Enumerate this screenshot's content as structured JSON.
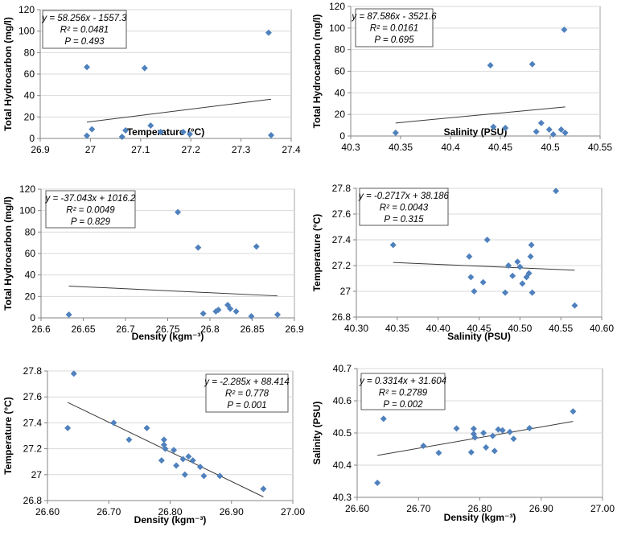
{
  "chart_data": [
    {
      "type": "scatter",
      "title": "",
      "xlabel": "Temperature (°C)",
      "ylabel": "Total Hydrocarbon (mg/l)",
      "xlim": [
        26.9,
        27.4
      ],
      "ylim": [
        0,
        120
      ],
      "xticks": [
        "26.9",
        "27",
        "27.1",
        "27.2",
        "27.3",
        "27.4"
      ],
      "yticks": [
        "0",
        "20",
        "40",
        "60",
        "80",
        "100",
        "120"
      ],
      "grid": true,
      "annotation": [
        "y = 58.256x - 1557.3",
        "R² = 0.0481",
        "P = 0.493"
      ],
      "annotation_position": "top-left",
      "trendline": {
        "slope": 58.256,
        "intercept": -1557.3,
        "x_range": [
          26.993,
          27.36
        ]
      },
      "points": [
        [
          26.993,
          66.5
        ],
        [
          26.993,
          2.5
        ],
        [
          27.003,
          8.5
        ],
        [
          27.063,
          1.5
        ],
        [
          27.07,
          7.5
        ],
        [
          27.108,
          65.5
        ],
        [
          27.12,
          12
        ],
        [
          27.14,
          6
        ],
        [
          27.185,
          6
        ],
        [
          27.198,
          4
        ],
        [
          27.355,
          98.5
        ],
        [
          27.36,
          3
        ]
      ]
    },
    {
      "type": "scatter",
      "title": "",
      "xlabel": "Salinity (PSU)",
      "ylabel": "Total Hydrocarbon (mg/l)",
      "xlim": [
        40.3,
        40.55
      ],
      "ylim": [
        0,
        120
      ],
      "xticks": [
        "40.3",
        "40.35",
        "40.4",
        "40.45",
        "40.5",
        "40.55"
      ],
      "yticks": [
        "0",
        "20",
        "40",
        "60",
        "80",
        "100",
        "120"
      ],
      "grid": true,
      "annotation": [
        "y = 87.586x - 3521.6",
        "R² = 0.0161",
        "P =  0.695"
      ],
      "annotation_position": "top-left",
      "trendline": {
        "slope": 87.586,
        "intercept": -3521.6,
        "x_range": [
          40.345,
          40.515
        ]
      },
      "points": [
        [
          40.345,
          3
        ],
        [
          40.44,
          65.5
        ],
        [
          40.443,
          8.5
        ],
        [
          40.455,
          7.5
        ],
        [
          40.482,
          66.5
        ],
        [
          40.486,
          4
        ],
        [
          40.491,
          12
        ],
        [
          40.499,
          6
        ],
        [
          40.503,
          1.5
        ],
        [
          40.511,
          6
        ],
        [
          40.514,
          98.5
        ],
        [
          40.515,
          3
        ]
      ]
    },
    {
      "type": "scatter",
      "title": "",
      "xlabel": "Density (kgm⁻³)",
      "ylabel": "Total Hydrocarbon (mg/l)",
      "xlim": [
        26.6,
        26.9
      ],
      "ylim": [
        0,
        120
      ],
      "xticks": [
        "26.6",
        "26.65",
        "26.7",
        "26.75",
        "26.8",
        "26.85",
        "26.9"
      ],
      "yticks": [
        "0",
        "20",
        "40",
        "60",
        "80",
        "100",
        "120"
      ],
      "grid": true,
      "annotation": [
        "y = -37.043x + 1016.2",
        "R² = 0.0049",
        "P = 0.829"
      ],
      "annotation_position": "top-left",
      "trendline": {
        "slope": -37.043,
        "intercept": 1016.2,
        "x_range": [
          26.633,
          26.88
        ]
      },
      "points": [
        [
          26.633,
          3
        ],
        [
          26.762,
          98.5
        ],
        [
          26.786,
          65.5
        ],
        [
          26.792,
          4
        ],
        [
          26.807,
          6
        ],
        [
          26.81,
          7.5
        ],
        [
          26.821,
          12
        ],
        [
          26.824,
          8.5
        ],
        [
          26.831,
          6
        ],
        [
          26.849,
          1.5
        ],
        [
          26.855,
          66.5
        ],
        [
          26.88,
          3
        ]
      ]
    },
    {
      "type": "scatter",
      "title": "",
      "xlabel": "Salinity (PSU)",
      "ylabel": "Temperature (°C)",
      "xlim": [
        40.3,
        40.6
      ],
      "ylim": [
        26.8,
        27.8
      ],
      "xticks": [
        "40.30",
        "40.35",
        "40.40",
        "40.45",
        "40.50",
        "40.55",
        "40.60"
      ],
      "yticks": [
        "27",
        "27.2",
        "27.4",
        "27.6",
        "27.8"
      ],
      "ytick_values": [
        27.0,
        27.2,
        27.4,
        27.6,
        27.8
      ],
      "ylim_label_bottom": "26.8",
      "grid": true,
      "annotation": [
        "y = -0.2717x + 38.186",
        "R² = 0.0043",
        "P = 0.315"
      ],
      "annotation_position": "top-left",
      "trendline": {
        "slope": -0.2717,
        "intercept": 38.186,
        "x_range": [
          40.345,
          40.567
        ]
      },
      "points": [
        [
          40.345,
          27.36
        ],
        [
          40.438,
          27.27
        ],
        [
          40.44,
          27.11
        ],
        [
          40.444,
          27.0
        ],
        [
          40.455,
          27.07
        ],
        [
          40.46,
          27.4
        ],
        [
          40.482,
          26.99
        ],
        [
          40.486,
          27.2
        ],
        [
          40.491,
          27.12
        ],
        [
          40.497,
          27.23
        ],
        [
          40.5,
          27.19
        ],
        [
          40.503,
          27.06
        ],
        [
          40.508,
          27.11
        ],
        [
          40.511,
          27.14
        ],
        [
          40.513,
          27.27
        ],
        [
          40.514,
          27.36
        ],
        [
          40.515,
          26.99
        ],
        [
          40.544,
          27.78
        ],
        [
          40.567,
          26.89
        ]
      ]
    },
    {
      "type": "scatter",
      "title": "",
      "xlabel": "Density (kgm⁻³)",
      "ylabel": "Temperature (°C)",
      "xlim": [
        26.6,
        27.0
      ],
      "ylim": [
        26.8,
        27.8
      ],
      "xticks": [
        "26.60",
        "26.70",
        "26.80",
        "26.90",
        "27.00"
      ],
      "yticks": [
        "26.8",
        "27",
        "27.2",
        "27.4",
        "27.6",
        "27.8"
      ],
      "grid": true,
      "annotation": [
        "y = -2.285x + 88.414",
        "R² = 0.778",
        "P = 0.001"
      ],
      "annotation_position": "top-right",
      "trendline": {
        "slope": -2.285,
        "intercept": 88.414,
        "x_range": [
          26.633,
          26.952
        ]
      },
      "points": [
        [
          26.633,
          27.36
        ],
        [
          26.643,
          27.78
        ],
        [
          26.708,
          27.4
        ],
        [
          26.733,
          27.27
        ],
        [
          26.762,
          27.36
        ],
        [
          26.786,
          27.11
        ],
        [
          26.79,
          27.27
        ],
        [
          26.79,
          27.23
        ],
        [
          26.792,
          27.2
        ],
        [
          26.806,
          27.19
        ],
        [
          26.81,
          27.07
        ],
        [
          26.821,
          27.12
        ],
        [
          26.824,
          27.0
        ],
        [
          26.83,
          27.14
        ],
        [
          26.837,
          27.11
        ],
        [
          26.849,
          27.06
        ],
        [
          26.855,
          26.99
        ],
        [
          26.881,
          26.99
        ],
        [
          26.952,
          26.89
        ]
      ]
    },
    {
      "type": "scatter",
      "title": "",
      "xlabel": "Density (kgm⁻³)",
      "ylabel": "Salinity (PSU)",
      "xlim": [
        26.6,
        27.0
      ],
      "ylim": [
        40.3,
        40.7
      ],
      "xticks": [
        "26.60",
        "26.70",
        "26.80",
        "26.90",
        "27.00"
      ],
      "yticks": [
        "40.3",
        "40.4",
        "40.5",
        "40.6",
        "40.7"
      ],
      "grid": true,
      "annotation": [
        "y = 0.3314x + 31.604",
        "R² = 0.2789",
        "P = 0.002"
      ],
      "annotation_position": "top-left",
      "trendline": {
        "slope": 0.3314,
        "intercept": 31.604,
        "x_range": [
          26.633,
          26.952
        ]
      },
      "points": [
        [
          26.633,
          40.345
        ],
        [
          26.643,
          40.544
        ],
        [
          26.708,
          40.46
        ],
        [
          26.733,
          40.438
        ],
        [
          26.762,
          40.514
        ],
        [
          26.786,
          40.44
        ],
        [
          26.79,
          40.513
        ],
        [
          26.79,
          40.497
        ],
        [
          26.792,
          40.486
        ],
        [
          26.806,
          40.5
        ],
        [
          26.81,
          40.455
        ],
        [
          26.821,
          40.491
        ],
        [
          26.824,
          40.444
        ],
        [
          26.83,
          40.511
        ],
        [
          26.837,
          40.508
        ],
        [
          26.849,
          40.503
        ],
        [
          26.855,
          40.482
        ],
        [
          26.881,
          40.515
        ],
        [
          26.952,
          40.567
        ]
      ]
    }
  ]
}
